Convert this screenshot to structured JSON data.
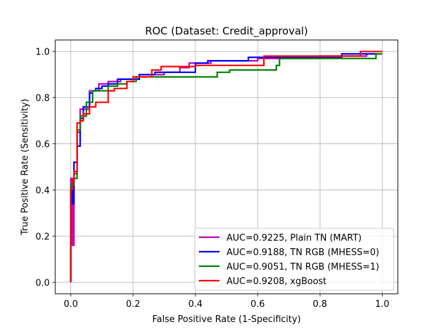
{
  "chart_data": {
    "type": "line",
    "title": "ROC (Dataset: Credit_approval)",
    "xlabel": "False Positive Rate (1-Specificity)",
    "ylabel": "True Positive Rate (Sensitivity)",
    "xlim": [
      -0.05,
      1.05
    ],
    "ylim": [
      -0.05,
      1.05
    ],
    "xticks": [
      "0.0",
      "0.2",
      "0.4",
      "0.6",
      "0.8",
      "1.0"
    ],
    "yticks": [
      "0.0",
      "0.2",
      "0.4",
      "0.6",
      "0.8",
      "1.0"
    ],
    "grid": true,
    "legend_position": "lower-right",
    "series": [
      {
        "name": "AUC=0.9225, Plain TN (MART)",
        "color": "#bf00bf",
        "x": [
          0.0,
          0.0,
          0.005,
          0.005,
          0.01,
          0.01,
          0.02,
          0.02,
          0.03,
          0.03,
          0.06,
          0.06,
          0.09,
          0.09,
          0.12,
          0.12,
          0.16,
          0.16,
          0.22,
          0.22,
          0.3,
          0.3,
          0.35,
          0.35,
          0.38,
          0.38,
          0.45,
          0.45,
          0.6,
          0.6,
          0.8,
          0.8,
          0.95,
          0.95,
          1.0
        ],
        "y": [
          0.0,
          0.45,
          0.45,
          0.16,
          0.16,
          0.47,
          0.47,
          0.65,
          0.65,
          0.75,
          0.75,
          0.83,
          0.83,
          0.86,
          0.86,
          0.87,
          0.87,
          0.88,
          0.88,
          0.9,
          0.9,
          0.91,
          0.91,
          0.93,
          0.93,
          0.95,
          0.95,
          0.96,
          0.96,
          0.97,
          0.97,
          0.98,
          0.98,
          0.99,
          0.99
        ]
      },
      {
        "name": "AUC=0.9188, TN RGB (MHESS=0)",
        "color": "#0000ff",
        "x": [
          0.0,
          0.0,
          0.005,
          0.005,
          0.01,
          0.01,
          0.02,
          0.02,
          0.03,
          0.03,
          0.04,
          0.04,
          0.06,
          0.06,
          0.07,
          0.07,
          0.08,
          0.08,
          0.1,
          0.1,
          0.12,
          0.12,
          0.15,
          0.15,
          0.22,
          0.22,
          0.27,
          0.27,
          0.4,
          0.4,
          0.44,
          0.44,
          0.57,
          0.57,
          0.87,
          0.87,
          1.0
        ],
        "y": [
          0.0,
          0.4,
          0.4,
          0.34,
          0.34,
          0.52,
          0.52,
          0.59,
          0.59,
          0.71,
          0.71,
          0.76,
          0.76,
          0.82,
          0.82,
          0.83,
          0.83,
          0.84,
          0.84,
          0.85,
          0.85,
          0.86,
          0.86,
          0.88,
          0.88,
          0.9,
          0.9,
          0.91,
          0.91,
          0.95,
          0.95,
          0.96,
          0.96,
          0.975,
          0.975,
          0.99,
          0.99
        ]
      },
      {
        "name": "AUC=0.9051, TN RGB (MHESS=1)",
        "color": "#008000",
        "x": [
          0.0,
          0.0,
          0.01,
          0.01,
          0.02,
          0.02,
          0.03,
          0.03,
          0.05,
          0.05,
          0.07,
          0.07,
          0.12,
          0.12,
          0.15,
          0.15,
          0.18,
          0.18,
          0.21,
          0.21,
          0.47,
          0.47,
          0.51,
          0.51,
          0.66,
          0.66,
          0.67,
          0.67,
          0.98,
          0.98,
          1.0
        ],
        "y": [
          0.0,
          0.42,
          0.42,
          0.45,
          0.45,
          0.66,
          0.66,
          0.72,
          0.72,
          0.78,
          0.78,
          0.83,
          0.83,
          0.85,
          0.85,
          0.86,
          0.86,
          0.87,
          0.87,
          0.89,
          0.89,
          0.91,
          0.91,
          0.92,
          0.92,
          0.94,
          0.94,
          0.97,
          0.97,
          0.99,
          0.99
        ]
      },
      {
        "name": "AUC=0.9208, xgBoost",
        "color": "#ff0000",
        "x": [
          0.0,
          0.0,
          0.005,
          0.005,
          0.01,
          0.01,
          0.02,
          0.02,
          0.03,
          0.03,
          0.04,
          0.04,
          0.06,
          0.06,
          0.08,
          0.08,
          0.12,
          0.12,
          0.14,
          0.14,
          0.18,
          0.18,
          0.2,
          0.2,
          0.26,
          0.26,
          0.29,
          0.29,
          0.4,
          0.4,
          0.62,
          0.62,
          0.93,
          0.93,
          1.0
        ],
        "y": [
          0.0,
          0.4,
          0.4,
          0.44,
          0.44,
          0.48,
          0.48,
          0.69,
          0.69,
          0.7,
          0.7,
          0.73,
          0.73,
          0.76,
          0.76,
          0.78,
          0.78,
          0.83,
          0.83,
          0.84,
          0.84,
          0.87,
          0.87,
          0.89,
          0.89,
          0.92,
          0.92,
          0.935,
          0.935,
          0.94,
          0.94,
          0.98,
          0.98,
          1.0,
          1.0
        ]
      }
    ]
  }
}
